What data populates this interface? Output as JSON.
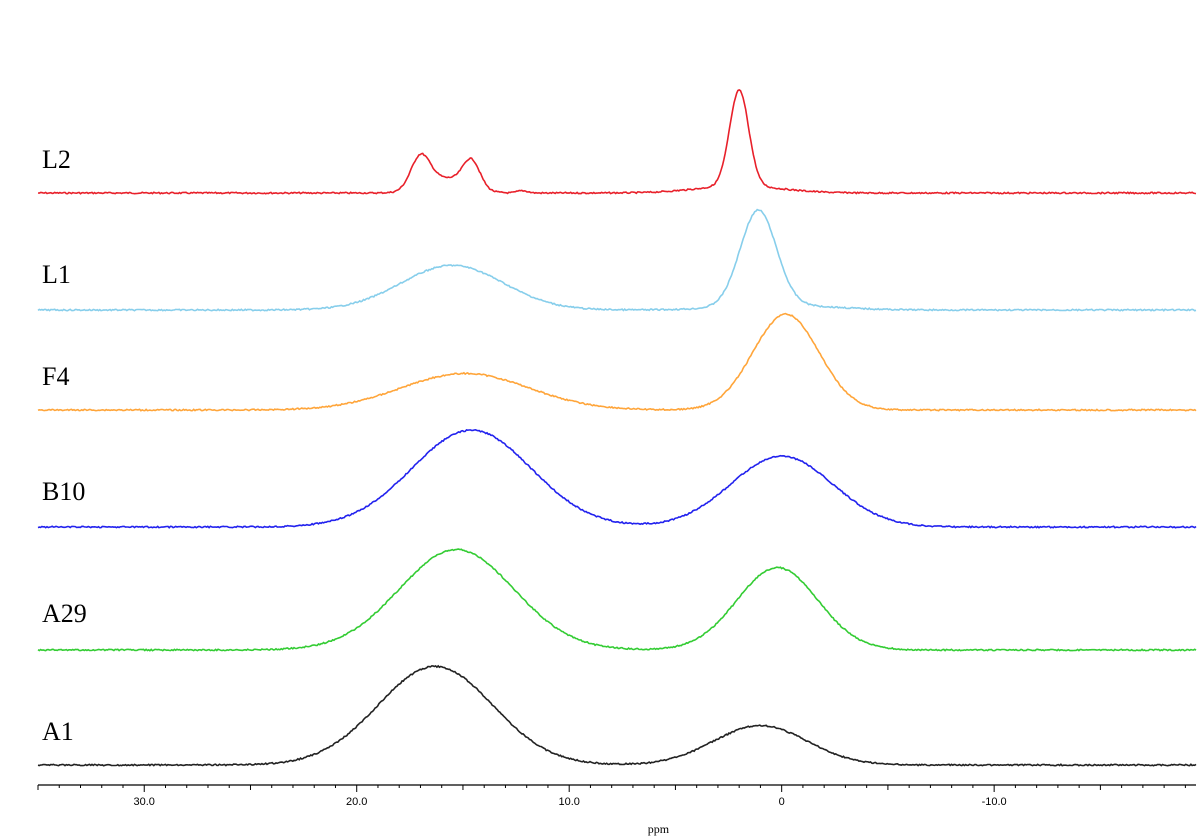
{
  "chart_data": {
    "type": "line",
    "title": "",
    "xlabel": "ppm",
    "ylabel": "",
    "xlim": [
      35.0,
      -19.5
    ],
    "x_reversed": true,
    "grid": false,
    "legend": "none",
    "x_ticks": [
      30.0,
      20.0,
      10.0,
      0,
      -10.0
    ],
    "x_tick_labels": [
      "30.0",
      "20.0",
      "10.0",
      "0",
      "-10.0"
    ],
    "peaks": [
      {
        "name": "L2",
        "color": "#e8202a",
        "peaks": [
          {
            "ppm": 17.0,
            "height": 0.55,
            "width": 0.45
          },
          {
            "ppm": 14.6,
            "height": 0.47,
            "width": 0.4
          },
          {
            "ppm": 15.8,
            "height": 0.25,
            "width": 1.0
          },
          {
            "ppm": 12.2,
            "height": 0.04,
            "width": 0.25
          },
          {
            "ppm": 2.0,
            "height": 1.65,
            "width": 0.45
          },
          {
            "ppm": 2.0,
            "height": 0.12,
            "width": 2.0
          }
        ]
      },
      {
        "name": "L1",
        "color": "#87ceeb",
        "peaks": [
          {
            "ppm": 15.5,
            "height": 0.77,
            "width": 2.4
          },
          {
            "ppm": 1.1,
            "height": 1.65,
            "width": 0.85
          },
          {
            "ppm": 0.0,
            "height": 0.08,
            "width": 2.5
          }
        ]
      },
      {
        "name": "F4",
        "color": "#ffa53a",
        "peaks": [
          {
            "ppm": 14.9,
            "height": 0.63,
            "width": 3.0
          },
          {
            "ppm": -0.2,
            "height": 1.65,
            "width": 1.55
          }
        ]
      },
      {
        "name": "B10",
        "color": "#2222ee",
        "peaks": [
          {
            "ppm": 14.6,
            "height": 1.67,
            "width": 2.8
          },
          {
            "ppm": 0.0,
            "height": 1.22,
            "width": 2.4
          }
        ]
      },
      {
        "name": "A29",
        "color": "#33cc33",
        "peaks": [
          {
            "ppm": 15.3,
            "height": 1.73,
            "width": 2.7
          },
          {
            "ppm": 0.2,
            "height": 1.42,
            "width": 1.9
          }
        ]
      },
      {
        "name": "A1",
        "color": "#222222",
        "peaks": [
          {
            "ppm": 16.3,
            "height": 1.7,
            "width": 2.7
          },
          {
            "ppm": 1.0,
            "height": 0.68,
            "width": 2.2
          }
        ]
      }
    ]
  }
}
